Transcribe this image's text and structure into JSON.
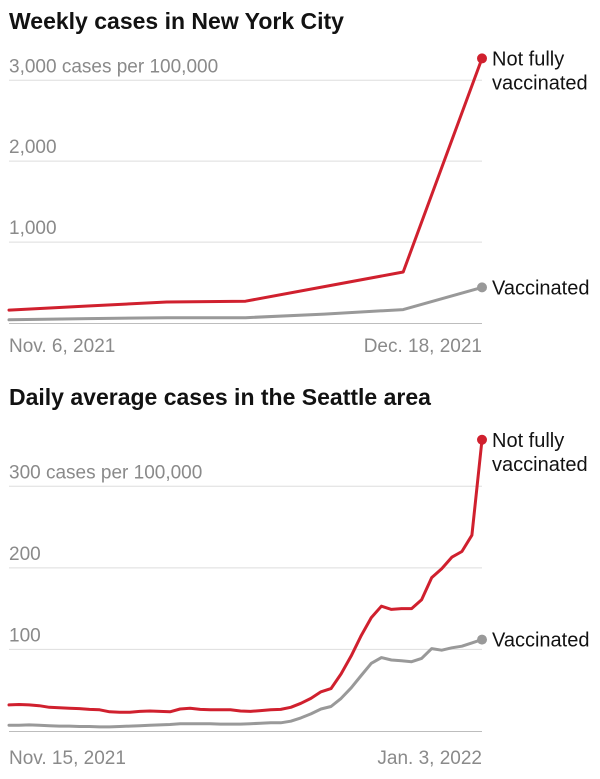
{
  "chart_data": [
    {
      "type": "line",
      "title": "Weekly cases in New York City",
      "unit_label": "3,000 cases per 100,000",
      "ylim": [
        0,
        3300
      ],
      "yticks": [
        1000,
        2000,
        3000
      ],
      "ytick_labels": [
        "1,000",
        "2,000",
        "3,000 cases per 100,000"
      ],
      "xticks": [
        "Nov. 6, 2021",
        "Dec. 18, 2021"
      ],
      "x": [
        "2021-11-06",
        "2021-11-13",
        "2021-11-20",
        "2021-11-27",
        "2021-12-04",
        "2021-12-11",
        "2021-12-18"
      ],
      "series": [
        {
          "name": "Not fully vaccinated",
          "label_lines": [
            "Not fully",
            "vaccinated"
          ],
          "color": "#d0202e",
          "values": [
            160,
            210,
            260,
            270,
            450,
            630,
            3270
          ]
        },
        {
          "name": "Vaccinated",
          "label_lines": [
            "Vaccinated"
          ],
          "color": "#999999",
          "values": [
            40,
            55,
            65,
            65,
            110,
            165,
            440
          ]
        }
      ]
    },
    {
      "type": "line",
      "title": "Daily average cases in the Seattle area",
      "unit_label": "300 cases per 100,000",
      "ylim": [
        0,
        380
      ],
      "yticks": [
        100,
        200,
        300
      ],
      "ytick_labels": [
        "100",
        "200",
        "300 cases per 100,000"
      ],
      "xticks": [
        "Nov. 15, 2021",
        "Jan. 3, 2022"
      ],
      "x_start": "2021-11-15",
      "x_end": "2022-01-03",
      "series": [
        {
          "name": "Not fully vaccinated",
          "label_lines": [
            "Not fully",
            "vaccinated"
          ],
          "color": "#d0202e",
          "values": [
            32,
            32.5,
            32,
            31,
            29,
            28.5,
            28,
            27.5,
            26.5,
            26,
            23.5,
            23,
            23,
            24,
            24.5,
            24,
            23.5,
            27,
            28,
            26.5,
            26,
            26,
            26,
            24.5,
            24,
            25,
            26,
            26.5,
            29,
            34,
            40,
            48,
            52,
            70,
            92,
            117,
            139,
            153,
            149,
            150,
            150,
            161,
            188,
            199,
            213,
            220,
            240,
            357
          ]
        },
        {
          "name": "Vaccinated",
          "label_lines": [
            "Vaccinated"
          ],
          "color": "#999999",
          "values": [
            7,
            7,
            7.5,
            7,
            6.5,
            6,
            6,
            5.5,
            5.5,
            5,
            5,
            5.5,
            6,
            6.5,
            7,
            7.5,
            8,
            9,
            9,
            9,
            9,
            8.5,
            8.5,
            8.5,
            9,
            9.5,
            10,
            10,
            12,
            16,
            21,
            27,
            30,
            40,
            53,
            68,
            83,
            90,
            87,
            86,
            85,
            89,
            101,
            99,
            102,
            104,
            108,
            112
          ]
        }
      ]
    }
  ]
}
